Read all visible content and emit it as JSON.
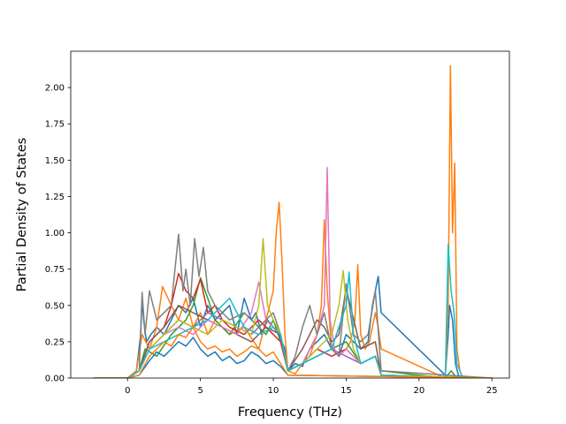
{
  "chart_data": {
    "type": "line",
    "title": "",
    "xlabel": "Frequency (THz)",
    "ylabel": "Partial Density of States",
    "xlim": [
      -3.9,
      26.2
    ],
    "ylim": [
      0,
      2.25
    ],
    "xticks": [
      0,
      5,
      10,
      15,
      20,
      25
    ],
    "xtick_labels": [
      "0",
      "5",
      "10",
      "15",
      "20",
      "25"
    ],
    "yticks": [
      0.0,
      0.25,
      0.5,
      0.75,
      1.0,
      1.25,
      1.5,
      1.75,
      2.0
    ],
    "ytick_labels": [
      "0.00",
      "0.25",
      "0.50",
      "0.75",
      "1.00",
      "1.25",
      "1.50",
      "1.75",
      "2.00"
    ],
    "grid": false,
    "legend": "none",
    "series": [
      {
        "color": "#1f77b4",
        "x": [
          -2.3,
          0,
          0.6,
          0.9,
          1.0,
          1.1,
          1.3,
          1.6,
          2.0,
          2.5,
          3.0,
          3.5,
          4.0,
          4.5,
          5.0,
          5.5,
          6.0,
          6.5,
          7.0,
          7.5,
          8.0,
          8.5,
          8.8,
          9.2,
          9.6,
          10.0,
          10.4,
          10.8,
          11.0,
          11.5,
          12.0,
          12.5,
          13.0,
          13.5,
          14.0,
          14.5,
          15.0,
          15.5,
          16.0,
          16.5,
          16.8,
          17.0,
          17.2,
          17.4,
          21.8,
          22.0,
          22.1,
          22.3,
          22.5,
          22.7,
          23.0,
          25.0
        ],
        "y": [
          0,
          0,
          0.05,
          0.3,
          0.55,
          0.4,
          0.25,
          0.3,
          0.35,
          0.3,
          0.4,
          0.5,
          0.45,
          0.55,
          0.35,
          0.5,
          0.4,
          0.45,
          0.5,
          0.3,
          0.55,
          0.4,
          0.45,
          0.3,
          0.4,
          0.35,
          0.3,
          0.2,
          0.05,
          0.1,
          0.08,
          0.2,
          0.25,
          0.3,
          0.2,
          0.15,
          0.3,
          0.25,
          0.2,
          0.25,
          0.5,
          0.6,
          0.7,
          0.45,
          0.02,
          0.3,
          0.5,
          0.4,
          0.1,
          0.02,
          0,
          0
        ]
      },
      {
        "color": "#ff7f0e",
        "x": [
          -2.3,
          0,
          0.6,
          1.0,
          1.5,
          2.0,
          2.4,
          3.0,
          3.5,
          4.0,
          4.5,
          5.0,
          5.5,
          6.0,
          7.0,
          8.0,
          9.0,
          9.5,
          10.0,
          10.2,
          10.4,
          10.6,
          10.8,
          11.0,
          11.5,
          12.0,
          12.5,
          13.0,
          13.3,
          13.5,
          13.7,
          14.0,
          14.5,
          15.0,
          15.3,
          15.6,
          15.8,
          16.0,
          16.3,
          16.6,
          17.0,
          17.2,
          17.4,
          21.8,
          22.0,
          22.15,
          22.3,
          22.45,
          22.6,
          22.8,
          23.0,
          25.0
        ],
        "y": [
          0,
          0,
          0.05,
          0.3,
          0.2,
          0.35,
          0.63,
          0.5,
          0.4,
          0.55,
          0.35,
          0.45,
          0.3,
          0.4,
          0.3,
          0.35,
          0.2,
          0.4,
          0.6,
          1.0,
          1.21,
          0.8,
          0.3,
          0.05,
          0.03,
          0.1,
          0.15,
          0.3,
          0.5,
          1.09,
          0.6,
          0.2,
          0.15,
          0.2,
          0.25,
          0.4,
          0.78,
          0.3,
          0.2,
          0.25,
          0.45,
          0.35,
          0.2,
          0.0,
          0.5,
          2.15,
          1.0,
          1.48,
          0.2,
          0.05,
          0,
          0
        ]
      },
      {
        "color": "#2ca02c",
        "x": [
          -2.3,
          0,
          0.8,
          1.2,
          2.0,
          3.0,
          4.0,
          4.5,
          5.0,
          5.5,
          6.0,
          7.0,
          8.0,
          9.0,
          9.5,
          10.0,
          10.5,
          11.0,
          12.0,
          13.0,
          14.0,
          15.0,
          16.0,
          17.0,
          17.4,
          21.8,
          22.2,
          22.6,
          25.0
        ],
        "y": [
          0,
          0,
          0.05,
          0.2,
          0.15,
          0.3,
          0.4,
          0.5,
          0.69,
          0.55,
          0.4,
          0.3,
          0.45,
          0.35,
          0.3,
          0.4,
          0.25,
          0.05,
          0.1,
          0.15,
          0.2,
          0.25,
          0.1,
          0.15,
          0.05,
          0,
          0.05,
          0,
          0
        ]
      },
      {
        "color": "#d62728",
        "x": [
          -2.3,
          0,
          0.8,
          1.5,
          2.5,
          3.0,
          3.5,
          4.0,
          4.5,
          5.0,
          5.5,
          6.0,
          6.5,
          7.0,
          8.0,
          9.0,
          10.0,
          10.5,
          11.0,
          12.0,
          13.0,
          14.0,
          15.0,
          16.0,
          17.0,
          17.4,
          25.0
        ],
        "y": [
          0,
          0,
          0.05,
          0.25,
          0.35,
          0.5,
          0.72,
          0.6,
          0.55,
          0.68,
          0.45,
          0.5,
          0.4,
          0.35,
          0.3,
          0.4,
          0.3,
          0.25,
          0.05,
          0.1,
          0.2,
          0.15,
          0.2,
          0.1,
          0.15,
          0.02,
          0
        ]
      },
      {
        "color": "#9467bd",
        "x": [
          -2.3,
          0,
          0.8,
          1.5,
          2.5,
          3.5,
          4.5,
          5.5,
          6.5,
          7.5,
          8.5,
          9.5,
          10.0,
          10.5,
          11.0,
          12.0,
          13.0,
          14.0,
          15.0,
          16.0,
          17.0,
          17.4,
          25.0
        ],
        "y": [
          0,
          0,
          0.05,
          0.2,
          0.3,
          0.4,
          0.35,
          0.45,
          0.4,
          0.35,
          0.3,
          0.4,
          0.35,
          0.3,
          0.05,
          0.1,
          0.15,
          0.2,
          0.15,
          0.1,
          0.15,
          0.02,
          0
        ]
      },
      {
        "color": "#8c564b",
        "x": [
          -2.3,
          0,
          0.8,
          1.5,
          2.5,
          3.5,
          4.5,
          5.5,
          6.5,
          7.5,
          8.5,
          9.5,
          10.5,
          11.0,
          12.0,
          12.5,
          13.0,
          13.5,
          14.0,
          14.5,
          15.0,
          16.0,
          17.0,
          17.4,
          25.0
        ],
        "y": [
          0,
          0,
          0.05,
          0.25,
          0.35,
          0.5,
          0.45,
          0.4,
          0.35,
          0.3,
          0.25,
          0.35,
          0.3,
          0.05,
          0.2,
          0.3,
          0.4,
          0.35,
          0.25,
          0.3,
          0.62,
          0.2,
          0.25,
          0.02,
          0
        ]
      },
      {
        "color": "#e377c2",
        "x": [
          -2.3,
          0,
          0.8,
          1.5,
          2.5,
          3.5,
          4.5,
          5.5,
          6.5,
          7.5,
          8.5,
          9.0,
          9.5,
          10.0,
          10.5,
          11.0,
          12.0,
          13.0,
          13.5,
          13.7,
          13.9,
          14.2,
          14.5,
          15.0,
          16.0,
          17.0,
          17.4,
          25.0
        ],
        "y": [
          0,
          0,
          0.05,
          0.2,
          0.3,
          0.35,
          0.3,
          0.4,
          0.35,
          0.3,
          0.45,
          0.66,
          0.4,
          0.35,
          0.3,
          0.05,
          0.1,
          0.3,
          0.5,
          1.45,
          0.4,
          0.2,
          0.15,
          0.2,
          0.1,
          0.15,
          0.02,
          0
        ]
      },
      {
        "color": "#7f7f7f",
        "x": [
          -2.3,
          0,
          0.8,
          1.0,
          1.2,
          1.5,
          2.0,
          3.0,
          3.5,
          3.8,
          4.0,
          4.3,
          4.6,
          4.9,
          5.2,
          5.5,
          6.0,
          7.0,
          8.0,
          9.0,
          10.0,
          10.5,
          11.0,
          11.5,
          12.0,
          12.5,
          13.0,
          13.5,
          14.0,
          14.5,
          15.0,
          15.5,
          16.0,
          16.5,
          17.0,
          17.4,
          25.0
        ],
        "y": [
          0,
          0,
          0.05,
          0.59,
          0.3,
          0.6,
          0.4,
          0.5,
          0.99,
          0.6,
          0.75,
          0.5,
          0.96,
          0.7,
          0.9,
          0.6,
          0.5,
          0.4,
          0.45,
          0.35,
          0.45,
          0.3,
          0.05,
          0.15,
          0.35,
          0.5,
          0.3,
          0.45,
          0.2,
          0.15,
          0.65,
          0.3,
          0.25,
          0.3,
          0.6,
          0.05,
          0
        ]
      },
      {
        "color": "#bcbd22",
        "x": [
          -2.3,
          0,
          0.8,
          1.5,
          2.5,
          3.5,
          4.5,
          5.5,
          6.5,
          7.5,
          8.5,
          9.0,
          9.3,
          9.6,
          10.0,
          10.5,
          11.0,
          12.0,
          13.0,
          14.0,
          14.5,
          14.8,
          15.1,
          15.5,
          16.0,
          17.0,
          17.4,
          25.0
        ],
        "y": [
          0,
          0,
          0.05,
          0.2,
          0.3,
          0.4,
          0.35,
          0.3,
          0.4,
          0.35,
          0.3,
          0.5,
          0.96,
          0.5,
          0.4,
          0.3,
          0.05,
          0.1,
          0.2,
          0.3,
          0.5,
          0.74,
          0.4,
          0.2,
          0.1,
          0.15,
          0.02,
          0
        ]
      },
      {
        "color": "#17becf",
        "x": [
          -2.3,
          0,
          0.8,
          1.5,
          2.5,
          3.5,
          4.5,
          5.5,
          6.5,
          7.0,
          7.5,
          8.0,
          9.0,
          10.0,
          10.5,
          11.0,
          12.0,
          13.0,
          14.0,
          15.0,
          15.2,
          15.5,
          16.0,
          17.0,
          17.4,
          21.8,
          22.0,
          22.2,
          22.4,
          22.6,
          23.0,
          25.0
        ],
        "y": [
          0,
          0,
          0.05,
          0.2,
          0.25,
          0.3,
          0.35,
          0.4,
          0.5,
          0.55,
          0.45,
          0.35,
          0.3,
          0.35,
          0.3,
          0.05,
          0.1,
          0.15,
          0.2,
          0.5,
          0.73,
          0.3,
          0.1,
          0.15,
          0.02,
          0,
          0.92,
          0.6,
          0.45,
          0.1,
          0,
          0
        ]
      },
      {
        "color": "#1f77b4",
        "x": [
          -2.3,
          0,
          0.8,
          1.5,
          2.0,
          2.5,
          3.0,
          3.5,
          4.0,
          4.5,
          5.0,
          5.5,
          6.0,
          6.5,
          7.0,
          7.5,
          8.0,
          8.5,
          9.0,
          9.5,
          10.0,
          10.5,
          11.0,
          25.0
        ],
        "y": [
          0,
          0,
          0.02,
          0.12,
          0.18,
          0.15,
          0.2,
          0.25,
          0.22,
          0.28,
          0.2,
          0.15,
          0.18,
          0.12,
          0.15,
          0.1,
          0.12,
          0.18,
          0.15,
          0.1,
          0.12,
          0.08,
          0.02,
          0
        ]
      },
      {
        "color": "#ff7f0e",
        "x": [
          -2.3,
          0,
          0.8,
          1.5,
          2.0,
          2.5,
          3.0,
          3.5,
          4.0,
          4.5,
          5.0,
          5.5,
          6.0,
          6.5,
          7.0,
          7.5,
          8.0,
          8.5,
          9.0,
          9.5,
          10.0,
          10.5,
          11.0,
          25.0
        ],
        "y": [
          0,
          0,
          0.02,
          0.15,
          0.2,
          0.25,
          0.22,
          0.3,
          0.28,
          0.35,
          0.25,
          0.2,
          0.22,
          0.18,
          0.2,
          0.15,
          0.18,
          0.22,
          0.2,
          0.15,
          0.18,
          0.1,
          0.02,
          0
        ]
      }
    ]
  }
}
